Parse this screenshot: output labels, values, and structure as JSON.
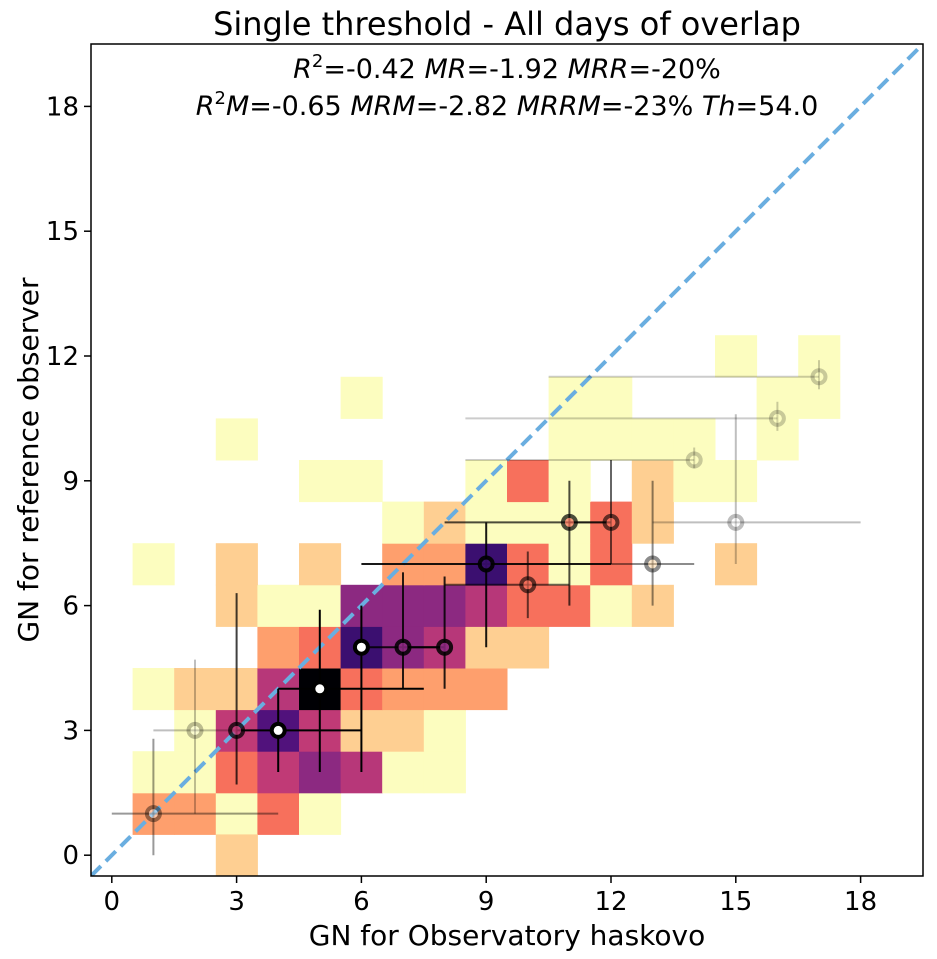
{
  "chart_data": {
    "type": "heatmap",
    "title": "Single threshold - All days of overlap",
    "xlabel": "GN for Observatory haskovo",
    "ylabel": "GN for reference observer",
    "xlim": [
      -0.5,
      19.5
    ],
    "ylim": [
      -0.5,
      19.5
    ],
    "xticks": [
      0,
      3,
      6,
      9,
      12,
      15,
      18
    ],
    "yticks": [
      0,
      3,
      6,
      9,
      12,
      15,
      18
    ],
    "stats": {
      "R2": "-0.42",
      "MR": "-1.92",
      "MRR": "-20%",
      "R2M": "-0.65",
      "MRM": "-2.82",
      "MRRM": "-23%",
      "Th": "54.0"
    },
    "identity_line": {
      "color": "#6aaee0",
      "style": "dashed"
    },
    "heatmap_cells": [
      {
        "x": 1,
        "y": 1,
        "c": "#fe9f6d"
      },
      {
        "x": 2,
        "y": 1,
        "c": "#fe9f6d"
      },
      {
        "x": 3,
        "y": 1,
        "c": "#fcfdbf"
      },
      {
        "x": 4,
        "y": 1,
        "c": "#f7705c"
      },
      {
        "x": 5,
        "y": 1,
        "c": "#fcfdbf"
      },
      {
        "x": 3,
        "y": 0,
        "c": "#fecf92"
      },
      {
        "x": 1,
        "y": 2,
        "c": "#fcfdbf"
      },
      {
        "x": 2,
        "y": 2,
        "c": "#fcfdbf"
      },
      {
        "x": 3,
        "y": 2,
        "c": "#f7705c"
      },
      {
        "x": 4,
        "y": 2,
        "c": "#c03a76"
      },
      {
        "x": 5,
        "y": 2,
        "c": "#8c2981"
      },
      {
        "x": 6,
        "y": 2,
        "c": "#b73779"
      },
      {
        "x": 7,
        "y": 2,
        "c": "#fcfdbf"
      },
      {
        "x": 8,
        "y": 2,
        "c": "#fcfdbf"
      },
      {
        "x": 2,
        "y": 3,
        "c": "#fcfdbf"
      },
      {
        "x": 3,
        "y": 3,
        "c": "#c03a76"
      },
      {
        "x": 4,
        "y": 3,
        "c": "#51127c"
      },
      {
        "x": 5,
        "y": 3,
        "c": "#c03a76"
      },
      {
        "x": 6,
        "y": 3,
        "c": "#fecf92"
      },
      {
        "x": 7,
        "y": 3,
        "c": "#fecf92"
      },
      {
        "x": 8,
        "y": 3,
        "c": "#fcfdbf"
      },
      {
        "x": 1,
        "y": 4,
        "c": "#fcfdbf"
      },
      {
        "x": 2,
        "y": 4,
        "c": "#fecf92"
      },
      {
        "x": 3,
        "y": 4,
        "c": "#fecf92"
      },
      {
        "x": 4,
        "y": 4,
        "c": "#b73779"
      },
      {
        "x": 5,
        "y": 4,
        "c": "#000004"
      },
      {
        "x": 6,
        "y": 4,
        "c": "#f7705c"
      },
      {
        "x": 7,
        "y": 4,
        "c": "#fe9f6d"
      },
      {
        "x": 8,
        "y": 4,
        "c": "#fe9f6d"
      },
      {
        "x": 9,
        "y": 4,
        "c": "#fe9f6d"
      },
      {
        "x": 4,
        "y": 5,
        "c": "#fe9f6d"
      },
      {
        "x": 5,
        "y": 5,
        "c": "#f7705c"
      },
      {
        "x": 6,
        "y": 5,
        "c": "#3b0f70"
      },
      {
        "x": 7,
        "y": 5,
        "c": "#8c2981"
      },
      {
        "x": 8,
        "y": 5,
        "c": "#b73779"
      },
      {
        "x": 9,
        "y": 5,
        "c": "#fecf92"
      },
      {
        "x": 10,
        "y": 5,
        "c": "#fecf92"
      },
      {
        "x": 3,
        "y": 6,
        "c": "#fecf92"
      },
      {
        "x": 4,
        "y": 6,
        "c": "#fcfdbf"
      },
      {
        "x": 5,
        "y": 6,
        "c": "#fcfdbf"
      },
      {
        "x": 6,
        "y": 6,
        "c": "#8c2981"
      },
      {
        "x": 7,
        "y": 6,
        "c": "#8c2981"
      },
      {
        "x": 8,
        "y": 6,
        "c": "#8c2981"
      },
      {
        "x": 9,
        "y": 6,
        "c": "#b73779"
      },
      {
        "x": 10,
        "y": 6,
        "c": "#f7705c"
      },
      {
        "x": 11,
        "y": 6,
        "c": "#f7705c"
      },
      {
        "x": 12,
        "y": 6,
        "c": "#fcfdbf"
      },
      {
        "x": 13,
        "y": 6,
        "c": "#fecf92"
      },
      {
        "x": 1,
        "y": 7,
        "c": "#fcfdbf"
      },
      {
        "x": 3,
        "y": 7,
        "c": "#fecf92"
      },
      {
        "x": 5,
        "y": 7,
        "c": "#fecf92"
      },
      {
        "x": 7,
        "y": 7,
        "c": "#fe9f6d"
      },
      {
        "x": 8,
        "y": 7,
        "c": "#fe9f6d"
      },
      {
        "x": 9,
        "y": 7,
        "c": "#3b0f70"
      },
      {
        "x": 10,
        "y": 7,
        "c": "#f7705c"
      },
      {
        "x": 11,
        "y": 7,
        "c": "#fcfdbf"
      },
      {
        "x": 12,
        "y": 7,
        "c": "#f7705c"
      },
      {
        "x": 15,
        "y": 7,
        "c": "#fecf92"
      },
      {
        "x": 7,
        "y": 8,
        "c": "#fcfdbf"
      },
      {
        "x": 8,
        "y": 8,
        "c": "#fecf92"
      },
      {
        "x": 9,
        "y": 8,
        "c": "#fcfdbf"
      },
      {
        "x": 10,
        "y": 8,
        "c": "#fcfdbf"
      },
      {
        "x": 11,
        "y": 8,
        "c": "#fcfdbf"
      },
      {
        "x": 12,
        "y": 8,
        "c": "#f7705c"
      },
      {
        "x": 13,
        "y": 8,
        "c": "#fecf92"
      },
      {
        "x": 5,
        "y": 9,
        "c": "#fcfdbf"
      },
      {
        "x": 6,
        "y": 9,
        "c": "#fcfdbf"
      },
      {
        "x": 9,
        "y": 9,
        "c": "#fcfdbf"
      },
      {
        "x": 10,
        "y": 9,
        "c": "#f7705c"
      },
      {
        "x": 11,
        "y": 9,
        "c": "#fcfdbf"
      },
      {
        "x": 13,
        "y": 9,
        "c": "#fecf92"
      },
      {
        "x": 14,
        "y": 9,
        "c": "#fcfdbf"
      },
      {
        "x": 15,
        "y": 9,
        "c": "#fcfdbf"
      },
      {
        "x": 3,
        "y": 10,
        "c": "#fcfdbf"
      },
      {
        "x": 11,
        "y": 10,
        "c": "#fcfdbf"
      },
      {
        "x": 12,
        "y": 10,
        "c": "#fcfdbf"
      },
      {
        "x": 13,
        "y": 10,
        "c": "#fcfdbf"
      },
      {
        "x": 14,
        "y": 10,
        "c": "#fcfdbf"
      },
      {
        "x": 16,
        "y": 10,
        "c": "#fcfdbf"
      },
      {
        "x": 6,
        "y": 11,
        "c": "#fcfdbf"
      },
      {
        "x": 11,
        "y": 11,
        "c": "#fcfdbf"
      },
      {
        "x": 12,
        "y": 11,
        "c": "#fcfdbf"
      },
      {
        "x": 16,
        "y": 11,
        "c": "#fcfdbf"
      },
      {
        "x": 17,
        "y": 11,
        "c": "#fcfdbf"
      },
      {
        "x": 15,
        "y": 12,
        "c": "#fcfdbf"
      },
      {
        "x": 17,
        "y": 12,
        "c": "#fcfdbf"
      }
    ],
    "points": [
      {
        "x": 1,
        "y": 1,
        "xerr": [
          0,
          4
        ],
        "yerr": [
          0,
          2.8
        ],
        "alpha": 0.4,
        "fill": "white"
      },
      {
        "x": 2,
        "y": 3,
        "xerr": [
          1,
          3
        ],
        "yerr": [
          1,
          4.7
        ],
        "alpha": 0.25,
        "fill": "white"
      },
      {
        "x": 3,
        "y": 3,
        "xerr": [
          3,
          3
        ],
        "yerr": [
          1.7,
          6.3
        ],
        "alpha": 0.75,
        "fill": "#c03a76"
      },
      {
        "x": 4,
        "y": 3,
        "xerr": [
          3,
          6
        ],
        "yerr": [
          2,
          4
        ],
        "alpha": 1.0,
        "fill": "white"
      },
      {
        "x": 5,
        "y": 4,
        "xerr": [
          4,
          7.5
        ],
        "yerr": [
          2,
          5.9
        ],
        "alpha": 1.0,
        "fill": "white"
      },
      {
        "x": 6,
        "y": 5,
        "xerr": [
          6,
          6
        ],
        "yerr": [
          2,
          6
        ],
        "alpha": 1.0,
        "fill": "white"
      },
      {
        "x": 7,
        "y": 5,
        "xerr": [
          6,
          8
        ],
        "yerr": [
          4,
          6.8
        ],
        "alpha": 0.85,
        "fill": "#8c2981"
      },
      {
        "x": 8,
        "y": 5,
        "xerr": [
          7,
          8
        ],
        "yerr": [
          4,
          6.7
        ],
        "alpha": 0.85,
        "fill": "#8c2981"
      },
      {
        "x": 9,
        "y": 7,
        "xerr": [
          6,
          12
        ],
        "yerr": [
          5,
          8
        ],
        "alpha": 0.9,
        "fill": "#3b0f70"
      },
      {
        "x": 10,
        "y": 6.5,
        "xerr": [
          8,
          11
        ],
        "yerr": [
          5.7,
          7.3
        ],
        "alpha": 0.6,
        "fill": "#f7705c"
      },
      {
        "x": 11,
        "y": 8,
        "xerr": [
          8,
          12
        ],
        "yerr": [
          6,
          9
        ],
        "alpha": 0.7,
        "fill": "#f7705c"
      },
      {
        "x": 12,
        "y": 8,
        "xerr": [
          11,
          12
        ],
        "yerr": [
          7,
          9.5
        ],
        "alpha": 0.6,
        "fill": "#f7705c"
      },
      {
        "x": 13,
        "y": 7,
        "xerr": [
          12,
          14
        ],
        "yerr": [
          6,
          9
        ],
        "alpha": 0.45,
        "fill": "#fecf92"
      },
      {
        "x": 14,
        "y": 9.5,
        "xerr": [
          8.5,
          14
        ],
        "yerr": [
          9.3,
          9.8
        ],
        "alpha": 0.2,
        "fill": "#fcfdbf"
      },
      {
        "x": 15,
        "y": 8,
        "xerr": [
          13,
          18
        ],
        "yerr": [
          7,
          10.6
        ],
        "alpha": 0.25,
        "fill": "white"
      },
      {
        "x": 16,
        "y": 10.5,
        "xerr": [
          8.5,
          16
        ],
        "yerr": [
          10.2,
          10.9
        ],
        "alpha": 0.2,
        "fill": "#fcfdbf"
      },
      {
        "x": 17,
        "y": 11.5,
        "xerr": [
          10.5,
          17
        ],
        "yerr": [
          11.2,
          11.9
        ],
        "alpha": 0.2,
        "fill": "#fcfdbf"
      }
    ],
    "grid": false
  }
}
